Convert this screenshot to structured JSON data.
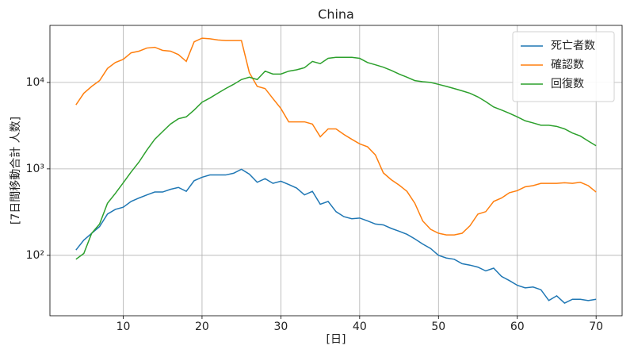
{
  "chart_data": {
    "type": "line",
    "title": "China",
    "x_label": "[日]",
    "y_label": "[7日間移動合計 人数]",
    "x": [
      4,
      5,
      6,
      7,
      8,
      9,
      10,
      11,
      12,
      13,
      14,
      15,
      16,
      17,
      18,
      19,
      20,
      21,
      22,
      23,
      24,
      25,
      26,
      27,
      28,
      29,
      30,
      31,
      32,
      33,
      34,
      35,
      36,
      37,
      38,
      39,
      40,
      41,
      42,
      43,
      44,
      45,
      46,
      47,
      48,
      49,
      50,
      51,
      52,
      53,
      54,
      55,
      56,
      57,
      58,
      59,
      60,
      61,
      62,
      63,
      64,
      65,
      66,
      67,
      68,
      69,
      70
    ],
    "series": [
      {
        "name": "死亡者数",
        "color": "#1f77b4",
        "values": [
          115,
          150,
          180,
          215,
          300,
          340,
          360,
          420,
          460,
          500,
          540,
          540,
          580,
          610,
          550,
          730,
          800,
          850,
          850,
          850,
          890,
          990,
          870,
          700,
          770,
          680,
          720,
          660,
          600,
          500,
          550,
          390,
          420,
          320,
          280,
          265,
          270,
          250,
          230,
          225,
          205,
          190,
          175,
          155,
          135,
          120,
          100,
          93,
          90,
          80,
          77,
          73,
          66,
          71,
          57,
          51,
          45,
          42,
          43,
          40,
          30,
          34,
          28,
          31,
          31,
          30,
          31
        ]
      },
      {
        "name": "確認数",
        "color": "#ff7f0e",
        "values": [
          5500,
          7500,
          9000,
          10500,
          14500,
          17000,
          18500,
          22000,
          23000,
          25000,
          25500,
          23500,
          23000,
          21000,
          17500,
          29500,
          32500,
          32000,
          31000,
          30500,
          30500,
          30500,
          13000,
          9000,
          8500,
          6500,
          5000,
          3500,
          3500,
          3500,
          3300,
          2350,
          2900,
          2900,
          2500,
          2200,
          1950,
          1800,
          1450,
          900,
          750,
          650,
          550,
          400,
          250,
          200,
          180,
          172,
          172,
          180,
          220,
          300,
          320,
          420,
          460,
          530,
          560,
          620,
          640,
          680,
          680,
          680,
          690,
          680,
          700,
          640,
          540
        ]
      },
      {
        "name": "回復数",
        "color": "#2ca02c",
        "values": [
          90,
          105,
          180,
          230,
          400,
          520,
          690,
          920,
          1200,
          1650,
          2200,
          2700,
          3300,
          3800,
          4000,
          4800,
          5900,
          6600,
          7500,
          8500,
          9500,
          10800,
          11500,
          10800,
          13500,
          12500,
          12500,
          13500,
          14000,
          14800,
          17500,
          16500,
          19000,
          19500,
          19500,
          19500,
          19000,
          17000,
          16000,
          15000,
          13800,
          12500,
          11500,
          10500,
          10200,
          10000,
          9500,
          9000,
          8500,
          8000,
          7500,
          6800,
          6000,
          5200,
          4800,
          4400,
          4000,
          3600,
          3400,
          3200,
          3200,
          3100,
          2900,
          2600,
          2400,
          2100,
          1850
        ]
      }
    ],
    "xlim": [
      0.7,
      73.3
    ],
    "xticks": [
      10,
      20,
      30,
      40,
      50,
      60,
      70
    ],
    "ylim": [
      20,
      45700
    ],
    "yticks": [
      {
        "value": 100,
        "label": "10²"
      },
      {
        "value": 1000,
        "label": "10³"
      },
      {
        "value": 10000,
        "label": "10⁴"
      }
    ],
    "log_y": true,
    "grid": true,
    "legend": "upper right"
  }
}
